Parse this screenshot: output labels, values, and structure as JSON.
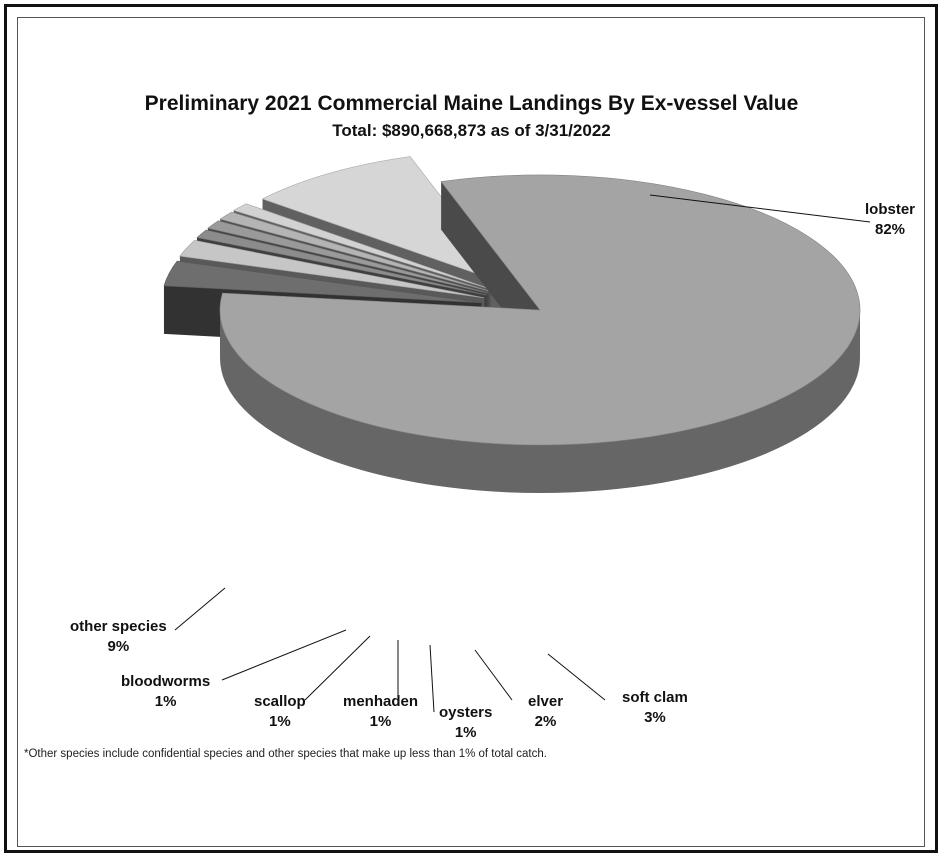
{
  "chart_data": {
    "type": "pie",
    "title": "Preliminary 2021 Commercial Maine Landings By Ex-vessel Value",
    "subtitle": "Total: $890,668,873 as of 3/31/2022",
    "categories": [
      "lobster",
      "soft clam",
      "elver",
      "oysters",
      "menhaden",
      "scallop",
      "bloodworms",
      "other species"
    ],
    "values": [
      82,
      3,
      2,
      1,
      1,
      1,
      1,
      9
    ],
    "value_labels": [
      "82%",
      "3%",
      "2%",
      "1%",
      "1%",
      "1%",
      "1%",
      "9%"
    ],
    "colors": [
      "#a4a4a4",
      "#6e6e6e",
      "#c6c6c6",
      "#8c8c8c",
      "#9a9a9a",
      "#b4b4b4",
      "#d2d2d2",
      "#d6d6d6"
    ],
    "footnote": "*Other species include confidential species and other species that make up less than 1% of total catch."
  }
}
